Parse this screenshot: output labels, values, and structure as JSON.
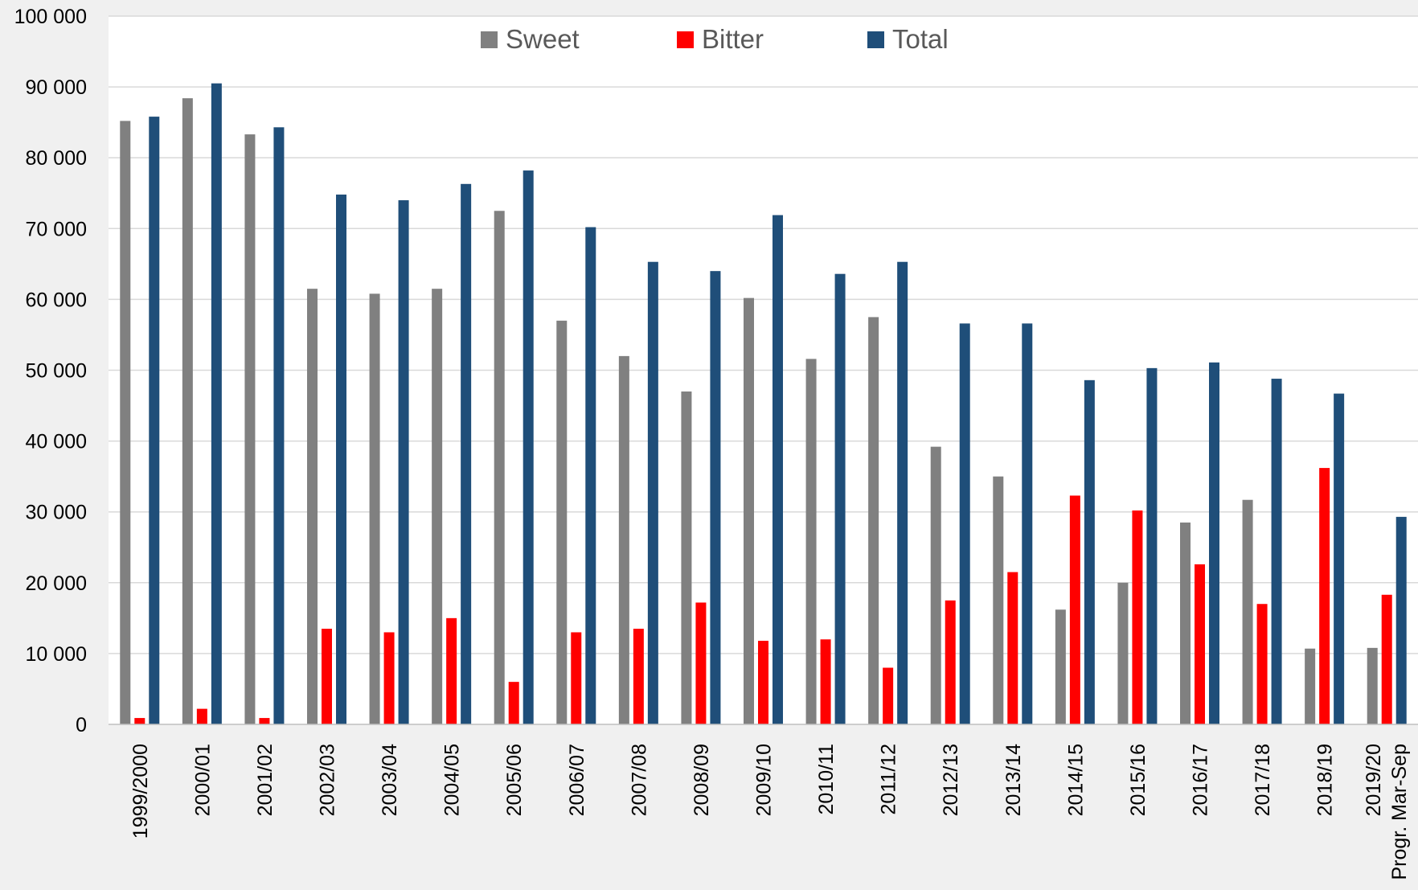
{
  "chart_data": {
    "type": "bar",
    "title": "",
    "xlabel": "",
    "ylabel": "",
    "ylim": [
      0,
      100000
    ],
    "yticks": [
      0,
      10000,
      20000,
      30000,
      40000,
      50000,
      60000,
      70000,
      80000,
      90000,
      100000
    ],
    "ytick_labels": [
      "0",
      "10 000",
      "20 000",
      "30 000",
      "40 000",
      "50 000",
      "60 000",
      "70 000",
      "80 000",
      "90 000",
      "100 000"
    ],
    "grid": true,
    "legend_position": "top-center",
    "categories": [
      "1999/2000",
      "2000/01",
      "2001/02",
      "2002/03",
      "2003/04",
      "2004/05",
      "2005/06",
      "2006/07",
      "2007/08",
      "2008/09",
      "2009/10",
      "2010/11",
      "2011/12",
      "2012/13",
      "2013/14",
      "2014/15",
      "2015/16",
      "2016/17",
      "2017/18",
      "2018/19",
      "2019/20 Progr. Mar-Sep"
    ],
    "series": [
      {
        "name": "Sweet",
        "color": "#808080",
        "values": [
          85200,
          88400,
          83300,
          61500,
          60800,
          61500,
          72500,
          57000,
          52000,
          47000,
          60200,
          51600,
          57500,
          39200,
          35000,
          16200,
          20000,
          28500,
          31700,
          10700,
          10800
        ]
      },
      {
        "name": "Bitter",
        "color": "#ff0000",
        "values": [
          900,
          2200,
          900,
          13500,
          13000,
          15000,
          6000,
          13000,
          13500,
          17200,
          11800,
          12000,
          8000,
          17500,
          21500,
          32300,
          30200,
          22600,
          17000,
          36200,
          18300
        ]
      },
      {
        "name": "Total",
        "color": "#1f4e79",
        "values": [
          85800,
          90500,
          84300,
          74800,
          74000,
          76300,
          78200,
          70200,
          65300,
          64000,
          71900,
          63600,
          65300,
          56600,
          56600,
          48600,
          50300,
          51100,
          48800,
          46700,
          29300
        ]
      }
    ]
  }
}
